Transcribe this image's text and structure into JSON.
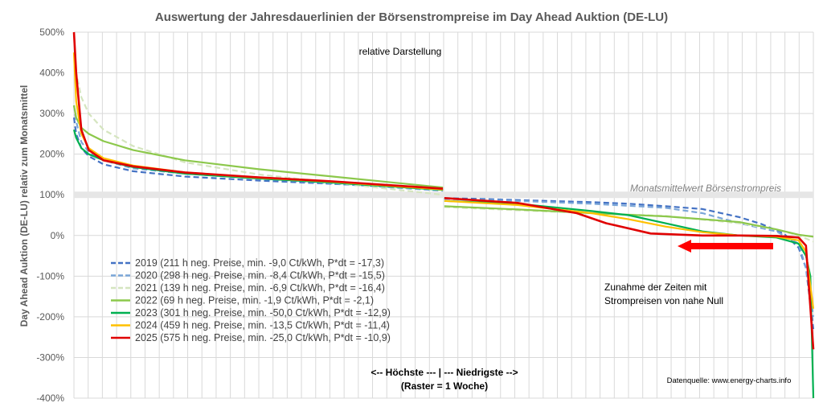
{
  "chart_data": {
    "type": "line",
    "title": "Auswertung der Jahresdauerlinien der Börsenstrompreise im Day Ahead Auktion (DE-LU)",
    "ylabel": "Day Ahead Auktion (DE-LU) relativ zum Monatsmittel",
    "xlabel_line1": "<-- Höchste --- | --- Niedrigste -->",
    "xlabel_line2": "(Raster = 1 Woche)",
    "subtitle_note": "relative Darstellung",
    "mean_label": "Monatsmittelwert Börsenstrompreis",
    "annotation_line1": "Zunahme der Zeiten mit",
    "annotation_line2": "Strompreisen von nahe Null",
    "source": "Datenquelle: www.energy-charts.info",
    "ylim": [
      -400,
      500
    ],
    "yticks": [
      500,
      400,
      300,
      200,
      100,
      0,
      -100,
      -200,
      -300,
      -400
    ],
    "ytick_labels": [
      "500%",
      "400%",
      "300%",
      "200%",
      "100%",
      "0%",
      "-100%",
      "-200%",
      "-300%",
      "-400%"
    ],
    "xlim": [
      0,
      1
    ],
    "x_grid_count": 52,
    "grid": true,
    "mean_value": 100,
    "legend_position": "bottom-left",
    "series": [
      {
        "name": "2019 (211 h neg. Preise, min. -9,0 Ct/kWh, P*dt = -17,3)",
        "color": "#4472C4",
        "dash": "dashed",
        "x": [
          0,
          0.003,
          0.01,
          0.02,
          0.04,
          0.08,
          0.15,
          0.25,
          0.35,
          0.499,
          0.501,
          0.55,
          0.62,
          0.7,
          0.75,
          0.8,
          0.85,
          0.9,
          0.93,
          0.96,
          0.98,
          0.99,
          1.0
        ],
        "values": [
          290,
          250,
          215,
          195,
          175,
          158,
          145,
          135,
          127,
          113,
          92,
          90,
          86,
          82,
          78,
          72,
          65,
          45,
          28,
          5,
          -30,
          -80,
          -230
        ]
      },
      {
        "name": "2020 (298 h neg. Preise, min. -8,4 Ct/kWh, P*dt = -15,5)",
        "color": "#7AA6D8",
        "dash": "dashed",
        "x": [
          0,
          0.003,
          0.01,
          0.02,
          0.04,
          0.08,
          0.15,
          0.25,
          0.35,
          0.499,
          0.501,
          0.6,
          0.7,
          0.8,
          0.85,
          0.9,
          0.95,
          0.98,
          0.99,
          1.0
        ],
        "values": [
          320,
          280,
          230,
          205,
          185,
          165,
          152,
          140,
          128,
          110,
          90,
          85,
          78,
          68,
          55,
          30,
          10,
          -20,
          -80,
          -200
        ]
      },
      {
        "name": "2021 (139 h neg. Preise, min. -6,9 Ct/kWh, P*dt = -16,4)",
        "color": "#D5E5BF",
        "dash": "dashed",
        "x": [
          0,
          0.003,
          0.01,
          0.02,
          0.04,
          0.08,
          0.15,
          0.25,
          0.35,
          0.499,
          0.501,
          0.6,
          0.7,
          0.8,
          0.9,
          0.95,
          0.98,
          1.0
        ],
        "values": [
          450,
          400,
          340,
          300,
          260,
          220,
          180,
          150,
          130,
          100,
          70,
          62,
          55,
          48,
          30,
          15,
          0,
          -15
        ]
      },
      {
        "name": "2022 (69 h neg. Preise, min. -1,9 Ct/kWh, P*dt = -2,1)",
        "color": "#8CC84B",
        "dash": "solid",
        "x": [
          0,
          0.003,
          0.01,
          0.02,
          0.04,
          0.08,
          0.15,
          0.25,
          0.35,
          0.499,
          0.501,
          0.6,
          0.7,
          0.8,
          0.9,
          0.95,
          0.98,
          1.0
        ],
        "values": [
          320,
          290,
          265,
          250,
          232,
          210,
          185,
          163,
          145,
          118,
          72,
          64,
          55,
          47,
          33,
          15,
          2,
          -3
        ]
      },
      {
        "name": "2023 (301 h neg. Preise, min. -50,0 Ct/kWh, P*dt = -12,9)",
        "color": "#00B050",
        "dash": "solid",
        "x": [
          0,
          0.003,
          0.01,
          0.02,
          0.04,
          0.08,
          0.15,
          0.25,
          0.35,
          0.499,
          0.501,
          0.6,
          0.7,
          0.75,
          0.8,
          0.85,
          0.9,
          0.95,
          0.98,
          0.99,
          0.996,
          1.0
        ],
        "values": [
          260,
          240,
          215,
          200,
          185,
          168,
          152,
          140,
          130,
          112,
          85,
          78,
          60,
          50,
          30,
          10,
          0,
          -5,
          -20,
          -50,
          -100,
          -400
        ]
      },
      {
        "name": "2024 (459 h neg. Preise, min. -13,5 Ct/kWh, P*dt = -11,4)",
        "color": "#FFC000",
        "dash": "solid",
        "x": [
          0,
          0.003,
          0.01,
          0.02,
          0.04,
          0.08,
          0.15,
          0.25,
          0.35,
          0.499,
          0.501,
          0.6,
          0.7,
          0.75,
          0.8,
          0.85,
          0.9,
          0.95,
          0.98,
          0.99,
          1.0
        ],
        "values": [
          450,
          330,
          250,
          215,
          190,
          172,
          155,
          142,
          132,
          113,
          85,
          75,
          55,
          40,
          22,
          8,
          0,
          -3,
          -12,
          -40,
          -180
        ]
      },
      {
        "name": "2025 (575 h neg. Preise, min. -25,0 Ct/kWh, P*dt = -10,9)",
        "color": "#E00000",
        "dash": "solid",
        "x": [
          0,
          0.003,
          0.01,
          0.02,
          0.04,
          0.08,
          0.15,
          0.25,
          0.35,
          0.499,
          0.501,
          0.6,
          0.68,
          0.72,
          0.78,
          0.85,
          0.9,
          0.95,
          0.98,
          0.99,
          1.0
        ],
        "values": [
          500,
          400,
          260,
          210,
          185,
          170,
          155,
          143,
          133,
          115,
          92,
          80,
          55,
          30,
          5,
          0,
          0,
          -1,
          -5,
          -25,
          -280
        ]
      }
    ]
  }
}
